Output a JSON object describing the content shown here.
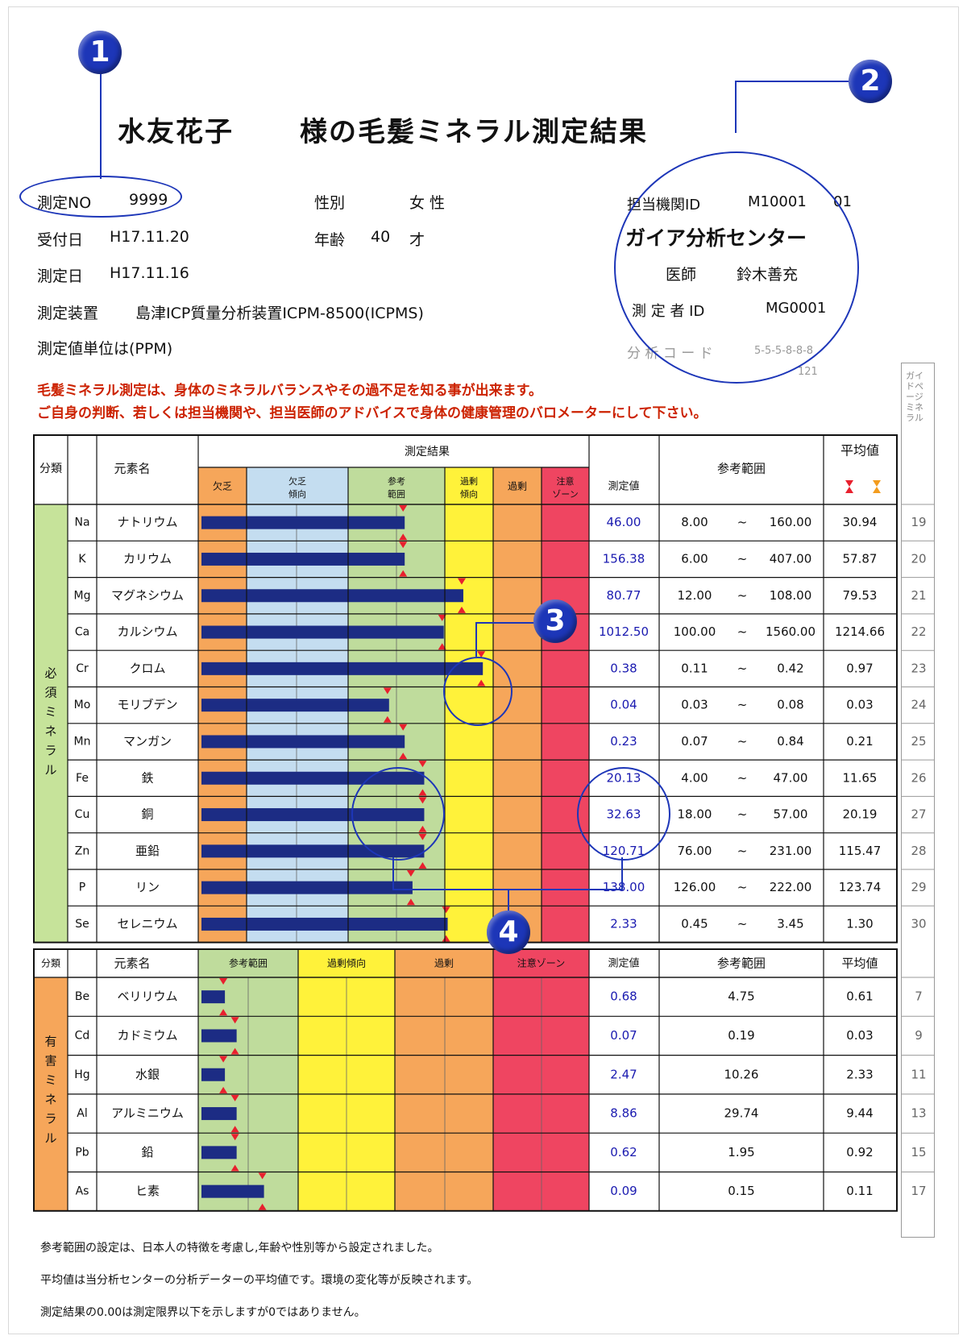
{
  "title": {
    "name": "水友花子",
    "suffix": "様の毛髪ミネラル測定結果"
  },
  "info": {
    "measure_no_label": "測定NO",
    "measure_no": "9999",
    "receive_label": "受付日",
    "receive_date": "H17.11.20",
    "measure_date_label": "測定日",
    "measure_date": "H17.11.16",
    "device_label": "測定装置",
    "device": "島津ICP質量分析装置ICPM-8500(ICPMS)",
    "unit_text": "測定値単位は(PPM)",
    "sex_label": "性別",
    "sex": "女 性",
    "age_label": "年齢",
    "age": "40",
    "age_unit": "才",
    "agency_id_label": "担当機関ID",
    "agency_id": "M10001",
    "agency_sub": "01",
    "center": "ガイア分析センター",
    "doctor_label": "医師",
    "doctor": "鈴木善充",
    "measurer_label": "測 定 者 ID",
    "measurer_id": "MG0001",
    "analysis_code_label": "分 析 コ ー ド",
    "analysis_code": "5-5-5-8-8-8",
    "analysis_code_sub": "121"
  },
  "notice": [
    "毛髪ミネラル測定は、身体のミネラルバランスやその過不足を知る事が出来ます。",
    "ご自身の判断、若しくは担当機関や、担当医師のアドバイスで身体の健康管理のバロメーターにして下さい。"
  ],
  "guide_page_label": "ガイドページミネラル",
  "table1": {
    "headers": {
      "category": "分類",
      "element": "元素名",
      "result": "測定結果",
      "zones": [
        "欠乏",
        "欠乏傾向",
        "参考範囲",
        "過剰傾向",
        "過剰",
        "注意ゾーン"
      ],
      "value": "測定値",
      "range": "参考範囲",
      "average": "平均値"
    },
    "category_label": "必須ミネラル",
    "rows": [
      {
        "symbol": "Na",
        "name": "ナトリウム",
        "bar": 0.52,
        "value": "46.00",
        "low": "8.00",
        "high": "160.00",
        "avg": "30.94",
        "page": "19"
      },
      {
        "symbol": "K",
        "name": "カリウム",
        "bar": 0.52,
        "value": "156.38",
        "low": "6.00",
        "high": "407.00",
        "avg": "57.87",
        "page": "20"
      },
      {
        "symbol": "Mg",
        "name": "マグネシウム",
        "bar": 0.67,
        "value": "80.77",
        "low": "12.00",
        "high": "108.00",
        "avg": "79.53",
        "page": "21"
      },
      {
        "symbol": "Ca",
        "name": "カルシウム",
        "bar": 0.62,
        "value": "1012.50",
        "low": "100.00",
        "high": "1560.00",
        "avg": "1214.66",
        "page": "22"
      },
      {
        "symbol": "Cr",
        "name": "クロム",
        "bar": 0.72,
        "value": "0.38",
        "low": "0.11",
        "high": "0.42",
        "avg": "0.97",
        "page": "23"
      },
      {
        "symbol": "Mo",
        "name": "モリブデン",
        "bar": 0.48,
        "value": "0.04",
        "low": "0.03",
        "high": "0.08",
        "avg": "0.03",
        "page": "24"
      },
      {
        "symbol": "Mn",
        "name": "マンガン",
        "bar": 0.52,
        "value": "0.23",
        "low": "0.07",
        "high": "0.84",
        "avg": "0.21",
        "page": "25"
      },
      {
        "symbol": "Fe",
        "name": "鉄",
        "bar": 0.57,
        "value": "20.13",
        "low": "4.00",
        "high": "47.00",
        "avg": "11.65",
        "page": "26"
      },
      {
        "symbol": "Cu",
        "name": "銅",
        "bar": 0.57,
        "value": "32.63",
        "low": "18.00",
        "high": "57.00",
        "avg": "20.19",
        "page": "27"
      },
      {
        "symbol": "Zn",
        "name": "亜鉛",
        "bar": 0.57,
        "value": "120.71",
        "low": "76.00",
        "high": "231.00",
        "avg": "115.47",
        "page": "28"
      },
      {
        "symbol": "P",
        "name": "リン",
        "bar": 0.54,
        "value": "138.00",
        "low": "126.00",
        "high": "222.00",
        "avg": "123.74",
        "page": "29"
      },
      {
        "symbol": "Se",
        "name": "セレニウム",
        "bar": 0.63,
        "value": "2.33",
        "low": "0.45",
        "high": "3.45",
        "avg": "1.30",
        "page": "30"
      }
    ]
  },
  "table2": {
    "headers": {
      "category": "分類",
      "element": "元素名",
      "zones": [
        "参考範囲",
        "過剰傾向",
        "過剰",
        "注意ゾーン"
      ],
      "value": "測定値",
      "range": "参考範囲",
      "average": "平均値"
    },
    "category_label": "有害ミネラル",
    "rows": [
      {
        "symbol": "Be",
        "name": "ベリリウム",
        "bar": 0.06,
        "value": "0.68",
        "range": "4.75",
        "avg": "0.61",
        "page": "7"
      },
      {
        "symbol": "Cd",
        "name": "カドミウム",
        "bar": 0.09,
        "value": "0.07",
        "range": "0.19",
        "avg": "0.03",
        "page": "9"
      },
      {
        "symbol": "Hg",
        "name": "水銀",
        "bar": 0.06,
        "value": "2.47",
        "range": "10.26",
        "avg": "2.33",
        "page": "11"
      },
      {
        "symbol": "Al",
        "name": "アルミニウム",
        "bar": 0.09,
        "value": "8.86",
        "range": "29.74",
        "avg": "9.44",
        "page": "13"
      },
      {
        "symbol": "Pb",
        "name": "鉛",
        "bar": 0.09,
        "value": "0.62",
        "range": "1.95",
        "avg": "0.92",
        "page": "15"
      },
      {
        "symbol": "As",
        "name": "ヒ素",
        "bar": 0.16,
        "value": "0.09",
        "range": "0.15",
        "avg": "0.11",
        "page": "17"
      }
    ]
  },
  "footnotes": [
    "参考範囲の設定は、日本人の特徴を考慮し,年齢や性別等から設定されました。",
    "平均値は当分析センターの分析データーの平均値です。環境の変化等が反映されます。",
    "測定結果の0.00は測定限界以下を示しますが0ではありません。"
  ],
  "callouts": [
    "1",
    "2",
    "3",
    "4"
  ],
  "colors": {
    "deficiency": "#f6a65a",
    "tendency": "#c4ddf0",
    "reference": "#bfdc9c",
    "excess_tendency": "#fff23a",
    "excess": "#f6a65a",
    "caution": "#ef4561",
    "bar": "#1c2c84",
    "marker": "#e8202e",
    "value_text": "#1a1ab0",
    "callout": "#1d36b8"
  }
}
